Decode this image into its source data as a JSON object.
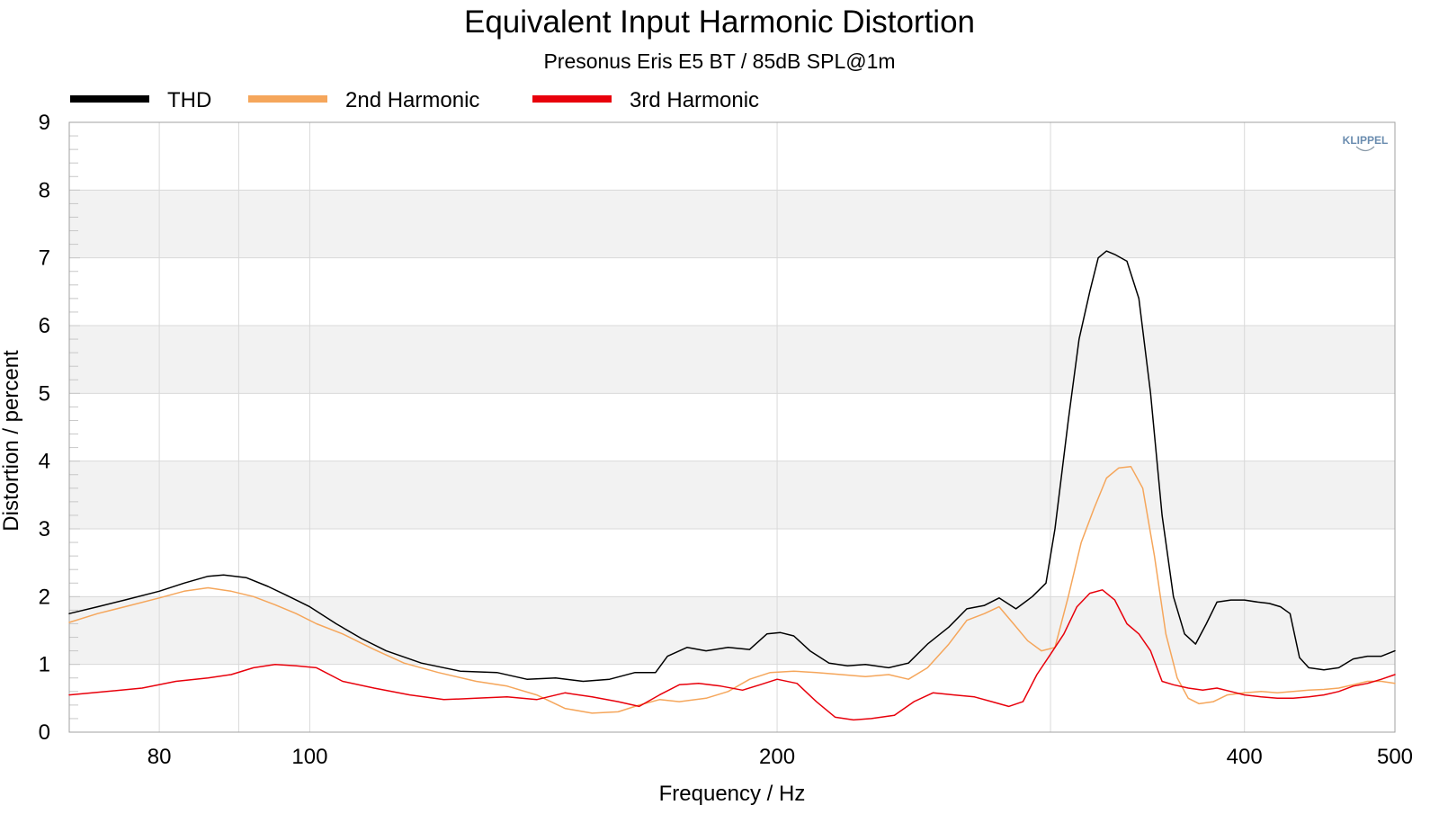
{
  "chart_data": {
    "type": "line",
    "title": "Equivalent Input Harmonic Distortion",
    "subtitle": "Presonus Eris E5 BT / 85dB SPL@1m",
    "xlabel": "Frequency / Hz",
    "ylabel": "Distortion / percent",
    "watermark": "KLIPPEL",
    "x_scale": "log",
    "xlim": [
      70,
      500
    ],
    "ylim": [
      0,
      9
    ],
    "grid": true,
    "legend_position": "top-left",
    "x_ticks": [
      {
        "value": 80,
        "label": "80"
      },
      {
        "value": 100,
        "label": "100"
      },
      {
        "value": 200,
        "label": "200"
      },
      {
        "value": 400,
        "label": "400"
      },
      {
        "value": 500,
        "label": "500"
      }
    ],
    "x_minor_grid": [
      90,
      300
    ],
    "y_ticks": [
      {
        "value": 0,
        "label": "0"
      },
      {
        "value": 1,
        "label": "1"
      },
      {
        "value": 2,
        "label": "2"
      },
      {
        "value": 3,
        "label": "3"
      },
      {
        "value": 4,
        "label": "4"
      },
      {
        "value": 5,
        "label": "5"
      },
      {
        "value": 6,
        "label": "6"
      },
      {
        "value": 7,
        "label": "7"
      },
      {
        "value": 8,
        "label": "8"
      },
      {
        "value": 9,
        "label": "9"
      }
    ],
    "colors": {
      "band": "#f2f2f2",
      "grid": "#d9d9d9",
      "frame": "#a0a0a0"
    },
    "series": [
      {
        "name": "THD",
        "color": "#000000",
        "points": [
          [
            70,
            1.75
          ],
          [
            73,
            1.85
          ],
          [
            76,
            1.95
          ],
          [
            80,
            2.08
          ],
          [
            83,
            2.2
          ],
          [
            86,
            2.3
          ],
          [
            88,
            2.32
          ],
          [
            91,
            2.28
          ],
          [
            94,
            2.15
          ],
          [
            97,
            2.0
          ],
          [
            100,
            1.85
          ],
          [
            104,
            1.6
          ],
          [
            108,
            1.38
          ],
          [
            112,
            1.2
          ],
          [
            118,
            1.02
          ],
          [
            125,
            0.9
          ],
          [
            132,
            0.88
          ],
          [
            138,
            0.78
          ],
          [
            144,
            0.8
          ],
          [
            150,
            0.75
          ],
          [
            156,
            0.78
          ],
          [
            162,
            0.88
          ],
          [
            167,
            0.88
          ],
          [
            170,
            1.12
          ],
          [
            175,
            1.25
          ],
          [
            180,
            1.2
          ],
          [
            186,
            1.25
          ],
          [
            192,
            1.22
          ],
          [
            197,
            1.45
          ],
          [
            201,
            1.47
          ],
          [
            205,
            1.42
          ],
          [
            210,
            1.2
          ],
          [
            216,
            1.02
          ],
          [
            222,
            0.98
          ],
          [
            228,
            1.0
          ],
          [
            236,
            0.95
          ],
          [
            243,
            1.02
          ],
          [
            250,
            1.3
          ],
          [
            258,
            1.55
          ],
          [
            265,
            1.82
          ],
          [
            272,
            1.87
          ],
          [
            278,
            1.98
          ],
          [
            285,
            1.82
          ],
          [
            292,
            2.0
          ],
          [
            298,
            2.2
          ],
          [
            302,
            3.0
          ],
          [
            308,
            4.6
          ],
          [
            313,
            5.8
          ],
          [
            318,
            6.5
          ],
          [
            322,
            7.0
          ],
          [
            326,
            7.1
          ],
          [
            330,
            7.05
          ],
          [
            336,
            6.95
          ],
          [
            342,
            6.4
          ],
          [
            348,
            5.0
          ],
          [
            354,
            3.2
          ],
          [
            360,
            2.0
          ],
          [
            366,
            1.45
          ],
          [
            372,
            1.3
          ],
          [
            378,
            1.6
          ],
          [
            384,
            1.92
          ],
          [
            392,
            1.95
          ],
          [
            400,
            1.95
          ],
          [
            408,
            1.92
          ],
          [
            415,
            1.9
          ],
          [
            422,
            1.85
          ],
          [
            428,
            1.75
          ],
          [
            434,
            1.1
          ],
          [
            440,
            0.95
          ],
          [
            450,
            0.92
          ],
          [
            460,
            0.95
          ],
          [
            470,
            1.08
          ],
          [
            480,
            1.12
          ],
          [
            490,
            1.12
          ],
          [
            500,
            1.2
          ]
        ]
      },
      {
        "name": "2nd Harmonic",
        "color": "#f5a65b",
        "points": [
          [
            70,
            1.62
          ],
          [
            73,
            1.75
          ],
          [
            76,
            1.85
          ],
          [
            80,
            1.98
          ],
          [
            83,
            2.08
          ],
          [
            86,
            2.13
          ],
          [
            89,
            2.08
          ],
          [
            92,
            2.0
          ],
          [
            95,
            1.88
          ],
          [
            98,
            1.75
          ],
          [
            101,
            1.6
          ],
          [
            105,
            1.45
          ],
          [
            110,
            1.22
          ],
          [
            115,
            1.02
          ],
          [
            121,
            0.88
          ],
          [
            128,
            0.75
          ],
          [
            134,
            0.68
          ],
          [
            140,
            0.55
          ],
          [
            146,
            0.35
          ],
          [
            152,
            0.28
          ],
          [
            158,
            0.3
          ],
          [
            163,
            0.4
          ],
          [
            168,
            0.48
          ],
          [
            173,
            0.45
          ],
          [
            180,
            0.5
          ],
          [
            186,
            0.6
          ],
          [
            192,
            0.78
          ],
          [
            198,
            0.88
          ],
          [
            205,
            0.9
          ],
          [
            212,
            0.88
          ],
          [
            220,
            0.85
          ],
          [
            228,
            0.82
          ],
          [
            236,
            0.85
          ],
          [
            243,
            0.78
          ],
          [
            250,
            0.95
          ],
          [
            258,
            1.3
          ],
          [
            265,
            1.65
          ],
          [
            272,
            1.75
          ],
          [
            278,
            1.85
          ],
          [
            284,
            1.6
          ],
          [
            290,
            1.35
          ],
          [
            296,
            1.2
          ],
          [
            302,
            1.25
          ],
          [
            308,
            2.0
          ],
          [
            314,
            2.8
          ],
          [
            320,
            3.3
          ],
          [
            326,
            3.75
          ],
          [
            332,
            3.9
          ],
          [
            338,
            3.92
          ],
          [
            344,
            3.6
          ],
          [
            350,
            2.6
          ],
          [
            356,
            1.45
          ],
          [
            362,
            0.8
          ],
          [
            368,
            0.5
          ],
          [
            374,
            0.42
          ],
          [
            382,
            0.45
          ],
          [
            390,
            0.55
          ],
          [
            400,
            0.58
          ],
          [
            410,
            0.6
          ],
          [
            420,
            0.58
          ],
          [
            430,
            0.6
          ],
          [
            440,
            0.62
          ],
          [
            450,
            0.63
          ],
          [
            460,
            0.65
          ],
          [
            470,
            0.7
          ],
          [
            480,
            0.75
          ],
          [
            490,
            0.75
          ],
          [
            500,
            0.72
          ]
        ]
      },
      {
        "name": "3rd Harmonic",
        "color": "#e8000b",
        "points": [
          [
            70,
            0.55
          ],
          [
            74,
            0.6
          ],
          [
            78,
            0.65
          ],
          [
            82,
            0.75
          ],
          [
            86,
            0.8
          ],
          [
            89,
            0.85
          ],
          [
            92,
            0.95
          ],
          [
            95,
            1.0
          ],
          [
            98,
            0.98
          ],
          [
            101,
            0.95
          ],
          [
            105,
            0.75
          ],
          [
            110,
            0.65
          ],
          [
            116,
            0.55
          ],
          [
            122,
            0.48
          ],
          [
            128,
            0.5
          ],
          [
            134,
            0.52
          ],
          [
            140,
            0.48
          ],
          [
            146,
            0.58
          ],
          [
            152,
            0.52
          ],
          [
            158,
            0.45
          ],
          [
            163,
            0.38
          ],
          [
            168,
            0.55
          ],
          [
            173,
            0.7
          ],
          [
            178,
            0.72
          ],
          [
            184,
            0.68
          ],
          [
            190,
            0.62
          ],
          [
            195,
            0.7
          ],
          [
            200,
            0.78
          ],
          [
            206,
            0.72
          ],
          [
            212,
            0.45
          ],
          [
            218,
            0.22
          ],
          [
            224,
            0.18
          ],
          [
            230,
            0.2
          ],
          [
            238,
            0.25
          ],
          [
            245,
            0.45
          ],
          [
            252,
            0.58
          ],
          [
            260,
            0.55
          ],
          [
            268,
            0.52
          ],
          [
            275,
            0.45
          ],
          [
            282,
            0.38
          ],
          [
            288,
            0.45
          ],
          [
            294,
            0.85
          ],
          [
            300,
            1.15
          ],
          [
            306,
            1.45
          ],
          [
            312,
            1.85
          ],
          [
            318,
            2.05
          ],
          [
            324,
            2.1
          ],
          [
            330,
            1.95
          ],
          [
            336,
            1.6
          ],
          [
            342,
            1.45
          ],
          [
            348,
            1.2
          ],
          [
            354,
            0.75
          ],
          [
            360,
            0.7
          ],
          [
            368,
            0.65
          ],
          [
            376,
            0.62
          ],
          [
            384,
            0.65
          ],
          [
            392,
            0.6
          ],
          [
            400,
            0.55
          ],
          [
            410,
            0.52
          ],
          [
            420,
            0.5
          ],
          [
            430,
            0.5
          ],
          [
            440,
            0.52
          ],
          [
            450,
            0.55
          ],
          [
            460,
            0.6
          ],
          [
            470,
            0.68
          ],
          [
            480,
            0.72
          ],
          [
            490,
            0.78
          ],
          [
            500,
            0.85
          ]
        ]
      }
    ]
  }
}
